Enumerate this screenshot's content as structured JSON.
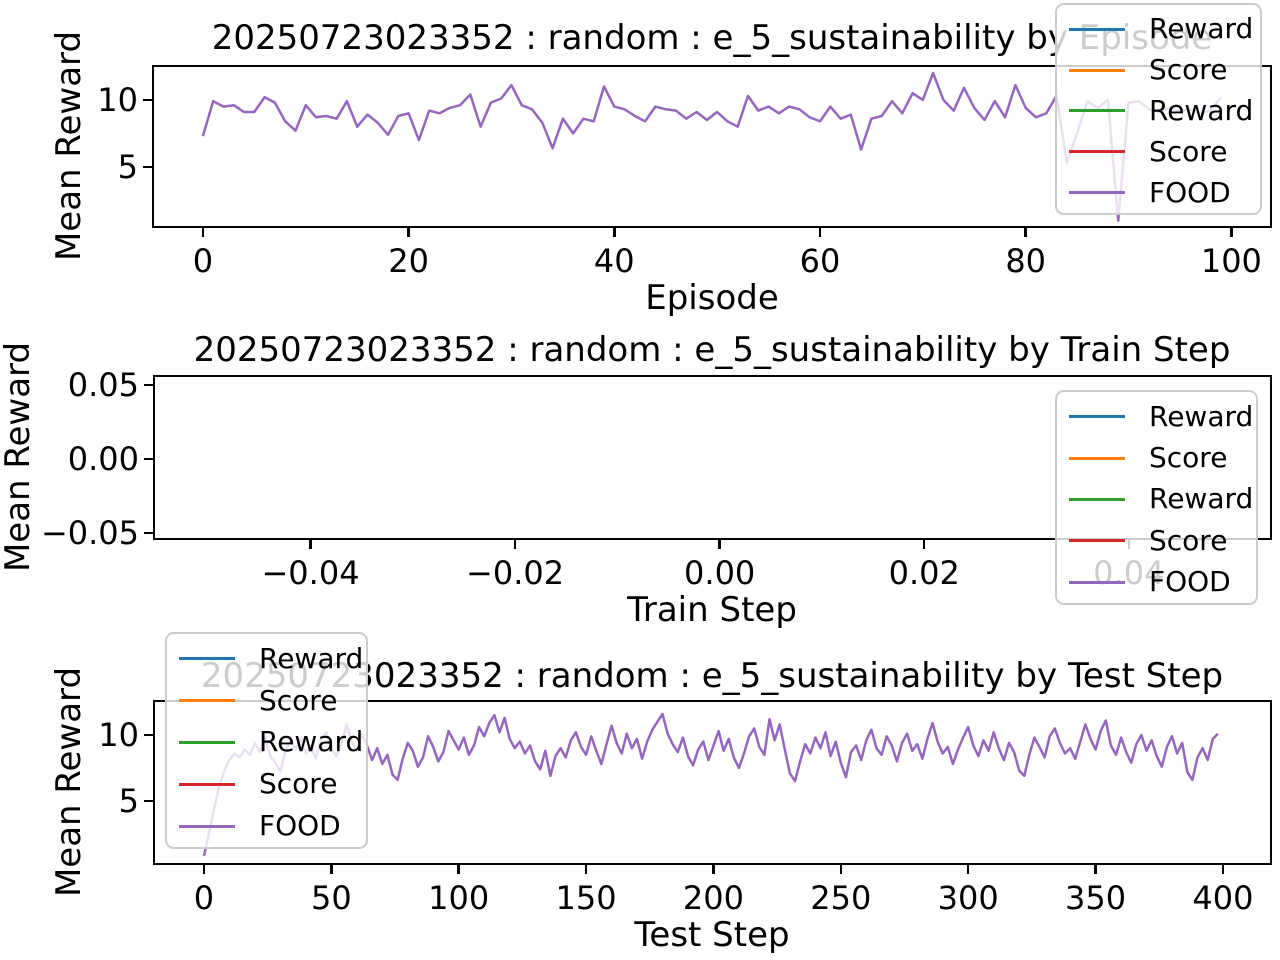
{
  "figure": {
    "background": "#ffffff",
    "text_color": "#000000",
    "line_color": "#9467bd"
  },
  "chart_data": [
    {
      "type": "line",
      "title": "20250723023352 : random : e_5_sustainability by Episode",
      "xlabel": "Episode",
      "ylabel": "Mean Reward",
      "xlim": [
        -4.95,
        103.95
      ],
      "ylim": [
        0.45,
        12.6
      ],
      "grid": false,
      "xticks": {
        "values": [
          0,
          20,
          40,
          60,
          80,
          100
        ],
        "labels": [
          "0",
          "20",
          "40",
          "60",
          "80",
          "100"
        ]
      },
      "yticks": {
        "values": [
          5,
          10
        ],
        "labels": [
          "5",
          "10"
        ]
      },
      "legend": {
        "position": "upper-right",
        "entries": [
          {
            "label": "Reward",
            "color": "#1f77b4"
          },
          {
            "label": "Score",
            "color": "#ff7f0e"
          },
          {
            "label": "Reward",
            "color": "#2ca02c"
          },
          {
            "label": "Score",
            "color": "#d62728"
          },
          {
            "label": "FOOD",
            "color": "#9467bd"
          }
        ]
      },
      "series": [
        {
          "name": "FOOD",
          "color": "#9467bd",
          "x_start": 0,
          "x_step": 1,
          "y": [
            7.3,
            9.9,
            9.5,
            9.6,
            9.1,
            9.1,
            10.2,
            9.8,
            8.4,
            7.7,
            9.6,
            8.7,
            8.8,
            8.6,
            9.9,
            8.0,
            8.9,
            8.3,
            7.4,
            8.8,
            9.0,
            7.0,
            9.2,
            9.0,
            9.4,
            9.6,
            10.4,
            8.0,
            9.8,
            10.1,
            11.1,
            9.6,
            9.3,
            8.3,
            6.4,
            8.6,
            7.5,
            8.6,
            8.4,
            11.0,
            9.5,
            9.3,
            8.8,
            8.4,
            9.5,
            9.3,
            9.2,
            8.6,
            9.1,
            8.5,
            9.1,
            8.4,
            8.0,
            10.3,
            9.2,
            9.5,
            9.0,
            9.5,
            9.3,
            8.7,
            8.4,
            9.5,
            8.6,
            8.9,
            6.3,
            8.6,
            8.8,
            9.9,
            9.0,
            10.5,
            10.0,
            12.0,
            10.0,
            9.2,
            10.9,
            9.4,
            8.5,
            9.9,
            8.7,
            11.1,
            9.4,
            8.7,
            9.0,
            10.3,
            5.3,
            7.5,
            9.9,
            9.4,
            10.0,
            1.0,
            9.8,
            9.9,
            9.3,
            9.1,
            9.4,
            9.2,
            9.3,
            9.0,
            9.2,
            10.2
          ]
        }
      ]
    },
    {
      "type": "line",
      "title": "20250723023352 : random : e_5_sustainability by Train Step",
      "xlabel": "Train Step",
      "ylabel": "Mean Reward",
      "xlim": [
        -0.0554,
        0.054
      ],
      "ylim": [
        -0.0547,
        0.0568
      ],
      "grid": false,
      "xticks": {
        "values": [
          -0.04,
          -0.02,
          0.0,
          0.02,
          0.04
        ],
        "labels": [
          "−0.04",
          "−0.02",
          "0.00",
          "0.02",
          "0.04"
        ]
      },
      "yticks": {
        "values": [
          -0.05,
          0.0,
          0.05
        ],
        "labels": [
          "−0.05",
          "0.00",
          "0.05"
        ]
      },
      "legend": {
        "position": "center-right",
        "entries": [
          {
            "label": "Reward",
            "color": "#1f77b4"
          },
          {
            "label": "Score",
            "color": "#ff7f0e"
          },
          {
            "label": "Reward",
            "color": "#2ca02c"
          },
          {
            "label": "Score",
            "color": "#d62728"
          },
          {
            "label": "FOOD",
            "color": "#9467bd"
          }
        ]
      },
      "series": []
    },
    {
      "type": "line",
      "title": "20250723023352 : random : e_5_sustainability by Test Step",
      "xlabel": "Test Step",
      "ylabel": "Mean Reward",
      "xlim": [
        -20.0,
        419.25
      ],
      "ylim": [
        0.15,
        12.65
      ],
      "grid": false,
      "xticks": {
        "values": [
          0,
          50,
          100,
          150,
          200,
          250,
          300,
          350,
          400
        ],
        "labels": [
          "0",
          "50",
          "100",
          "150",
          "200",
          "250",
          "300",
          "350",
          "400"
        ]
      },
      "yticks": {
        "values": [
          5,
          10
        ],
        "labels": [
          "5",
          "10"
        ]
      },
      "legend": {
        "position": "upper-left",
        "entries": [
          {
            "label": "Reward",
            "color": "#1f77b4"
          },
          {
            "label": "Score",
            "color": "#ff7f0e"
          },
          {
            "label": "Reward",
            "color": "#2ca02c"
          },
          {
            "label": "Score",
            "color": "#d62728"
          },
          {
            "label": "FOOD",
            "color": "#9467bd"
          }
        ]
      },
      "series": [
        {
          "name": "FOOD",
          "color": "#9467bd",
          "x_start": 0,
          "x_step": 2,
          "y": [
            0.85,
            2.6,
            4.4,
            6.1,
            7.3,
            8.1,
            8.6,
            8.3,
            8.9,
            8.5,
            9.4,
            8.7,
            9.9,
            8.4,
            7.9,
            7.2,
            8.8,
            9.6,
            8.9,
            9.8,
            8.6,
            9.1,
            8.2,
            9.7,
            10.2,
            9.0,
            8.4,
            9.3,
            10.8,
            9.5,
            8.8,
            10.1,
            9.2,
            8.1,
            9.0,
            7.8,
            8.5,
            7.0,
            6.6,
            8.2,
            9.4,
            8.8,
            7.6,
            8.3,
            9.9,
            9.1,
            8.0,
            8.7,
            10.3,
            9.6,
            8.9,
            9.8,
            8.5,
            9.2,
            10.6,
            9.9,
            10.9,
            11.5,
            10.2,
            11.3,
            9.7,
            9.0,
            9.5,
            8.6,
            9.2,
            8.0,
            7.4,
            8.8,
            6.9,
            8.4,
            9.0,
            8.3,
            9.6,
            10.2,
            9.1,
            8.5,
            9.9,
            8.8,
            7.8,
            9.3,
            10.7,
            9.4,
            8.6,
            10.1,
            9.0,
            9.7,
            8.2,
            9.5,
            10.4,
            11.0,
            11.6,
            10.1,
            9.3,
            8.7,
            9.8,
            8.4,
            7.7,
            8.9,
            9.5,
            8.1,
            9.2,
            10.3,
            8.8,
            9.7,
            8.3,
            7.5,
            8.6,
            9.9,
            10.5,
            9.1,
            8.5,
            11.2,
            9.6,
            10.8,
            8.9,
            7.1,
            6.5,
            8.0,
            9.3,
            8.6,
            9.8,
            9.0,
            10.2,
            8.4,
            9.5,
            7.9,
            6.8,
            8.7,
            9.2,
            8.1,
            9.6,
            10.4,
            9.0,
            8.5,
            9.9,
            9.2,
            8.0,
            9.4,
            10.1,
            8.8,
            9.3,
            8.2,
            9.7,
            10.9,
            9.5,
            8.6,
            9.1,
            7.8,
            8.9,
            9.8,
            10.6,
            9.2,
            8.4,
            9.6,
            8.8,
            10.2,
            9.0,
            8.1,
            9.4,
            8.7,
            7.3,
            6.9,
            8.5,
            9.8,
            9.1,
            8.3,
            9.9,
            10.5,
            9.4,
            8.6,
            9.0,
            8.2,
            9.5,
            10.8,
            9.7,
            8.9,
            10.3,
            11.1,
            9.2,
            8.5,
            9.8,
            8.7,
            7.9,
            9.3,
            10.0,
            8.8,
            9.6,
            8.4,
            7.6,
            9.1,
            9.9,
            8.6,
            9.4,
            7.2,
            6.6,
            8.3,
            9.0,
            8.1,
            9.7,
            10.1
          ]
        }
      ]
    }
  ]
}
